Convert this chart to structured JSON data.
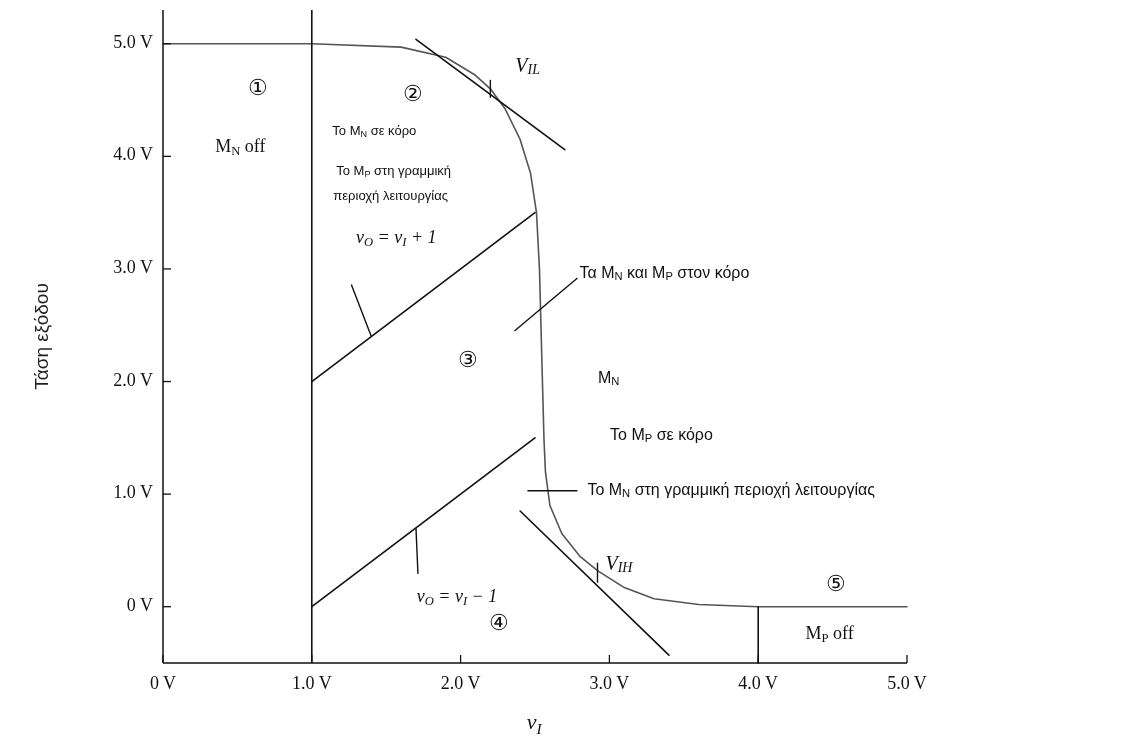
{
  "chart_data": {
    "type": "line",
    "xlabel": "v$_{I}$",
    "ylabel": "Τάση εξόδου",
    "xlim": [
      0,
      5
    ],
    "ylim": [
      -0.5,
      5.3
    ],
    "xticks": [
      {
        "value": 0,
        "label": "0 V"
      },
      {
        "value": 1,
        "label": "1.0 V"
      },
      {
        "value": 2,
        "label": "2.0 V"
      },
      {
        "value": 3,
        "label": "3.0 V"
      },
      {
        "value": 4,
        "label": "4.0 V"
      },
      {
        "value": 5,
        "label": "5.0 V"
      }
    ],
    "yticks": [
      {
        "value": 0,
        "label": "0 V"
      },
      {
        "value": 1,
        "label": "1.0 V"
      },
      {
        "value": 2,
        "label": "2.0 V"
      },
      {
        "value": 3,
        "label": "3.0 V"
      },
      {
        "value": 4,
        "label": "4.0 V"
      },
      {
        "value": 5,
        "label": "5.0 V"
      }
    ],
    "series": [
      {
        "color": "#555555",
        "x": [
          0,
          1,
          1.6,
          1.9,
          2.1,
          2.2,
          2.3,
          2.4,
          2.47,
          2.51,
          2.53,
          2.54,
          2.55,
          2.56,
          2.57,
          2.6,
          2.68,
          2.8,
          2.92,
          3.1,
          3.3,
          3.6,
          4,
          5
        ],
        "values": [
          5,
          5,
          4.97,
          4.88,
          4.72,
          4.6,
          4.42,
          4.15,
          3.85,
          3.5,
          3,
          2.5,
          2,
          1.5,
          1.2,
          0.9,
          0.65,
          0.45,
          0.32,
          0.17,
          0.07,
          0.02,
          0,
          0
        ]
      },
      {
        "color": "#111111",
        "x": [
          1,
          2.5
        ],
        "values": [
          2,
          3.5
        ]
      },
      {
        "color": "#111111",
        "x": [
          1,
          2.5
        ],
        "values": [
          0,
          1.5
        ]
      },
      {
        "color": "#111111",
        "x": [
          1.7,
          2.7
        ],
        "values": [
          5.04,
          4.06
        ]
      },
      {
        "color": "#111111",
        "x": [
          2.4,
          3.4
        ],
        "values": [
          0.85,
          -0.43
        ]
      },
      {
        "color": "#111111",
        "x": [
          4,
          4
        ],
        "values": [
          0,
          -0.5
        ]
      }
    ],
    "ref_lines": [
      {
        "axis": "x",
        "value": 1,
        "color": "#111111"
      }
    ],
    "annotations": [
      "①",
      "M$_{N}$ off",
      "②",
      "Το M$_{N}$ σε κόρο",
      "Το M$_{P}$ στη γραμμική",
      "περιοχή λειτουργίας",
      "v$_{O}$ = v$_{I}$ + 1",
      "Τα M$_{N}$ και M$_{P}$ στον κόρο",
      "③",
      "M$_{N}$",
      "Το M$_{P}$ σε κόρο",
      {
        "text": "Το M$_{N}$ στη γραμμική περιοχή λειτουργίας",
        "x": 2.57,
        "y": 1.03
      },
      {
        "text": "V$_{IL}$",
        "x": 2.2,
        "y": 4.6
      },
      {
        "text": "v$_{O}$ = v$_{I}$ − 1",
        "x": 1.7,
        "y": 0.7
      },
      {
        "text": "V$_{IH}$",
        "x": 2.92,
        "y": 0.32
      },
      "④",
      "⑤",
      "M$_{P}$ off"
    ]
  }
}
